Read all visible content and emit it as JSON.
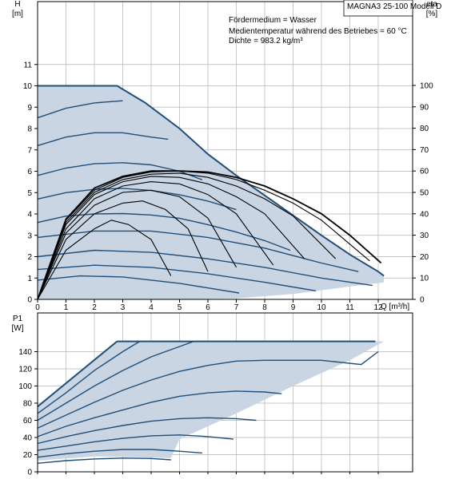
{
  "chart_data": [
    {
      "type": "line",
      "title": "MAGNA3 25-100 Modell D",
      "annotations": [
        "Fördermedium = Wasser",
        "Medientemperatur während des Betriebes = 60 °C",
        "Dichte = 983.2 kg/m³"
      ],
      "xlabel": "Q [m³/h]",
      "ylabel": "H",
      "ylabel_unit": "[m]",
      "y2label": "eta",
      "y2label_unit": "[%]",
      "xlim": [
        0,
        13
      ],
      "ylim": [
        0,
        12
      ],
      "y2lim": [
        0,
        120
      ],
      "x_ticks": [
        0,
        1,
        2,
        3,
        4,
        5,
        6,
        7,
        8,
        9,
        10,
        11,
        12
      ],
      "y_ticks": [
        0,
        1,
        2,
        3,
        4,
        5,
        6,
        7,
        8,
        9,
        10,
        11
      ],
      "y2_ticks": [
        0,
        10,
        20,
        30,
        40,
        50,
        60,
        70,
        80,
        90,
        100
      ],
      "grid": true,
      "operating_area_envelope": [
        [
          0,
          10
        ],
        [
          2.8,
          10
        ],
        [
          3.8,
          9.2
        ],
        [
          5.0,
          8.0
        ],
        [
          6.0,
          6.8
        ],
        [
          7.0,
          5.8
        ],
        [
          8.5,
          4.4
        ],
        [
          10.0,
          3.0
        ],
        [
          11.0,
          2.1
        ],
        [
          12.0,
          1.3
        ],
        [
          12.2,
          1.1
        ],
        [
          12.2,
          0.8
        ],
        [
          11.0,
          0.6
        ],
        [
          9.0,
          0.25
        ],
        [
          7.0,
          0.05
        ],
        [
          4.7,
          0
        ],
        [
          0,
          0
        ]
      ],
      "series": [
        {
          "values": [
            [
              0,
              8.5
            ],
            [
              1,
              8.95
            ],
            [
              2,
              9.2
            ],
            [
              3,
              9.3
            ]
          ]
        },
        {
          "values": [
            [
              0,
              7.2
            ],
            [
              1,
              7.6
            ],
            [
              2,
              7.8
            ],
            [
              3,
              7.8
            ],
            [
              4,
              7.6
            ],
            [
              4.6,
              7.5
            ]
          ]
        },
        {
          "values": [
            [
              0,
              5.8
            ],
            [
              1,
              6.15
            ],
            [
              2,
              6.35
            ],
            [
              3,
              6.4
            ],
            [
              4,
              6.3
            ],
            [
              5,
              6.0
            ],
            [
              5.8,
              5.6
            ]
          ]
        },
        {
          "values": [
            [
              0,
              4.7
            ],
            [
              1,
              5.0
            ],
            [
              2,
              5.15
            ],
            [
              3,
              5.2
            ],
            [
              4,
              5.1
            ],
            [
              5,
              4.9
            ],
            [
              6,
              4.6
            ],
            [
              7,
              4.2
            ]
          ]
        },
        {
          "values": [
            [
              0,
              3.6
            ],
            [
              1,
              3.9
            ],
            [
              2,
              4.0
            ],
            [
              3,
              4.02
            ],
            [
              4,
              3.95
            ],
            [
              5,
              3.8
            ],
            [
              6,
              3.5
            ],
            [
              7,
              3.15
            ],
            [
              8,
              2.75
            ],
            [
              8.9,
              2.3
            ]
          ]
        },
        {
          "values": [
            [
              0,
              2.9
            ],
            [
              2,
              3.2
            ],
            [
              4,
              3.2
            ],
            [
              6,
              2.9
            ],
            [
              8,
              2.4
            ],
            [
              10,
              1.7
            ],
            [
              11.3,
              1.3
            ]
          ]
        },
        {
          "values": [
            [
              0,
              2.0
            ],
            [
              2,
              2.3
            ],
            [
              4,
              2.2
            ],
            [
              6,
              1.9
            ],
            [
              8,
              1.5
            ],
            [
              10,
              1.0
            ],
            [
              11.8,
              0.65
            ]
          ]
        },
        {
          "values": [
            [
              0,
              1.4
            ],
            [
              2,
              1.6
            ],
            [
              4,
              1.5
            ],
            [
              6,
              1.2
            ],
            [
              8,
              0.8
            ],
            [
              9.8,
              0.4
            ]
          ]
        },
        {
          "values": [
            [
              0,
              0.9
            ],
            [
              1.5,
              1.1
            ],
            [
              3,
              1.05
            ],
            [
              5,
              0.75
            ],
            [
              7.1,
              0.3
            ]
          ]
        }
      ],
      "efficiency_series": [
        {
          "values": [
            [
              0,
              0
            ],
            [
              1,
              23
            ],
            [
              2,
              33
            ],
            [
              2.6,
              37
            ],
            [
              3.2,
              35
            ],
            [
              4,
              28
            ],
            [
              4.7,
              11
            ]
          ]
        },
        {
          "values": [
            [
              0,
              0
            ],
            [
              1,
              28
            ],
            [
              2,
              40
            ],
            [
              3,
              45
            ],
            [
              3.7,
              46
            ],
            [
              4.5,
              42
            ],
            [
              5.3,
              33
            ],
            [
              6,
              13
            ]
          ]
        },
        {
          "values": [
            [
              0,
              0
            ],
            [
              1,
              31
            ],
            [
              2,
              44
            ],
            [
              3,
              50
            ],
            [
              4,
              51
            ],
            [
              5,
              48
            ],
            [
              6,
              38
            ],
            [
              7,
              15
            ]
          ]
        },
        {
          "values": [
            [
              0,
              0
            ],
            [
              1,
              33
            ],
            [
              2,
              47
            ],
            [
              3,
              53
            ],
            [
              4,
              55
            ],
            [
              5,
              54
            ],
            [
              6,
              49
            ],
            [
              7,
              40
            ],
            [
              8.3,
              16
            ]
          ]
        },
        {
          "values": [
            [
              0,
              0
            ],
            [
              1,
              35
            ],
            [
              2,
              49
            ],
            [
              3,
              55
            ],
            [
              4,
              57.5
            ],
            [
              5,
              57
            ],
            [
              6,
              54
            ],
            [
              7,
              48
            ],
            [
              8,
              40
            ],
            [
              9.4,
              19
            ]
          ]
        },
        {
          "values": [
            [
              0,
              0
            ],
            [
              1,
              36
            ],
            [
              2,
              50
            ],
            [
              3,
              56
            ],
            [
              4,
              58.5
            ],
            [
              5,
              59
            ],
            [
              6,
              57
            ],
            [
              7,
              53
            ],
            [
              8,
              47
            ],
            [
              9,
              39
            ],
            [
              10.5,
              19
            ]
          ]
        },
        {
          "values": [
            [
              0,
              0
            ],
            [
              1,
              37
            ],
            [
              2,
              51
            ],
            [
              3,
              57
            ],
            [
              4,
              59.5
            ],
            [
              5,
              60
            ],
            [
              6,
              59
            ],
            [
              7,
              56
            ],
            [
              8,
              51
            ],
            [
              9,
              45
            ],
            [
              10,
              37
            ],
            [
              11.7,
              18
            ]
          ]
        },
        {
          "values": [
            [
              0,
              0
            ],
            [
              1,
              37.5
            ],
            [
              2,
              52
            ],
            [
              3,
              57.5
            ],
            [
              4,
              60
            ],
            [
              5,
              60
            ],
            [
              6,
              59.5
            ],
            [
              7,
              57
            ],
            [
              8,
              53
            ],
            [
              9,
              47
            ],
            [
              10,
              40
            ],
            [
              11,
              30
            ],
            [
              12.1,
              17
            ]
          ]
        }
      ]
    },
    {
      "type": "line",
      "ylabel": "P1",
      "ylabel_unit": "[W]",
      "xlim": [
        0,
        13
      ],
      "ylim": [
        0,
        160
      ],
      "y_ticks": [
        0,
        20,
        40,
        60,
        80,
        100,
        120,
        140
      ],
      "grid": true,
      "operating_area_envelope": [
        [
          0,
          76
        ],
        [
          2.8,
          152
        ],
        [
          12.2,
          152
        ],
        [
          11,
          130
        ],
        [
          9,
          100
        ],
        [
          7,
          68
        ],
        [
          5,
          38
        ],
        [
          4.7,
          16
        ],
        [
          2,
          18
        ],
        [
          0,
          13
        ]
      ],
      "series": [
        {
          "values": [
            [
              0,
              76
            ],
            [
              2.8,
              152
            ]
          ]
        },
        {
          "values": [
            [
              0,
              68
            ],
            [
              1,
              92
            ],
            [
              2,
              118
            ],
            [
              3,
              140
            ],
            [
              3.6,
              152
            ]
          ]
        },
        {
          "values": [
            [
              0,
              60
            ],
            [
              1,
              80
            ],
            [
              2,
              100
            ],
            [
              3,
              118
            ],
            [
              4,
              134
            ],
            [
              4.5,
              140
            ],
            [
              5,
              146
            ],
            [
              5.5,
              152
            ]
          ]
        },
        {
          "values": [
            [
              0,
              51
            ],
            [
              1,
              66
            ],
            [
              2,
              81
            ],
            [
              3,
              95
            ],
            [
              4,
              107
            ],
            [
              5,
              117
            ],
            [
              6,
              124
            ],
            [
              7,
              129
            ],
            [
              8,
              130
            ],
            [
              8.8,
              130
            ],
            [
              10,
              130
            ],
            [
              11.4,
              125
            ],
            [
              12,
              140
            ]
          ]
        },
        {
          "values": [
            [
              0,
              41
            ],
            [
              1,
              53
            ],
            [
              2,
              63
            ],
            [
              3,
              72
            ],
            [
              4,
              81
            ],
            [
              5,
              88
            ],
            [
              6,
              92
            ],
            [
              7,
              94
            ],
            [
              8,
              93
            ],
            [
              8.6,
              91
            ]
          ]
        },
        {
          "values": [
            [
              0,
              33
            ],
            [
              1,
              41
            ],
            [
              2,
              48
            ],
            [
              3,
              54
            ],
            [
              4,
              59
            ],
            [
              5,
              62
            ],
            [
              6,
              63
            ],
            [
              7,
              62
            ],
            [
              7.7,
              60
            ]
          ]
        },
        {
          "values": [
            [
              0,
              25
            ],
            [
              1,
              30
            ],
            [
              2,
              35
            ],
            [
              3,
              39
            ],
            [
              4,
              42
            ],
            [
              5,
              43
            ],
            [
              6,
              41
            ],
            [
              6.9,
              38
            ]
          ]
        },
        {
          "values": [
            [
              0,
              17
            ],
            [
              1,
              21
            ],
            [
              2,
              24
            ],
            [
              3,
              26
            ],
            [
              4,
              26
            ],
            [
              5,
              24
            ],
            [
              5.8,
              22
            ]
          ]
        },
        {
          "values": [
            [
              0,
              10
            ],
            [
              1,
              13
            ],
            [
              2,
              15
            ],
            [
              3,
              16
            ],
            [
              4,
              15.5
            ],
            [
              4.7,
              14
            ]
          ]
        }
      ]
    }
  ],
  "colors": {
    "area_fill": "#c9d5e3",
    "pump_curve": "#1f4e79",
    "efficiency_curve": "#000000",
    "grid": "#b4b4b4",
    "axis": "#000000"
  }
}
